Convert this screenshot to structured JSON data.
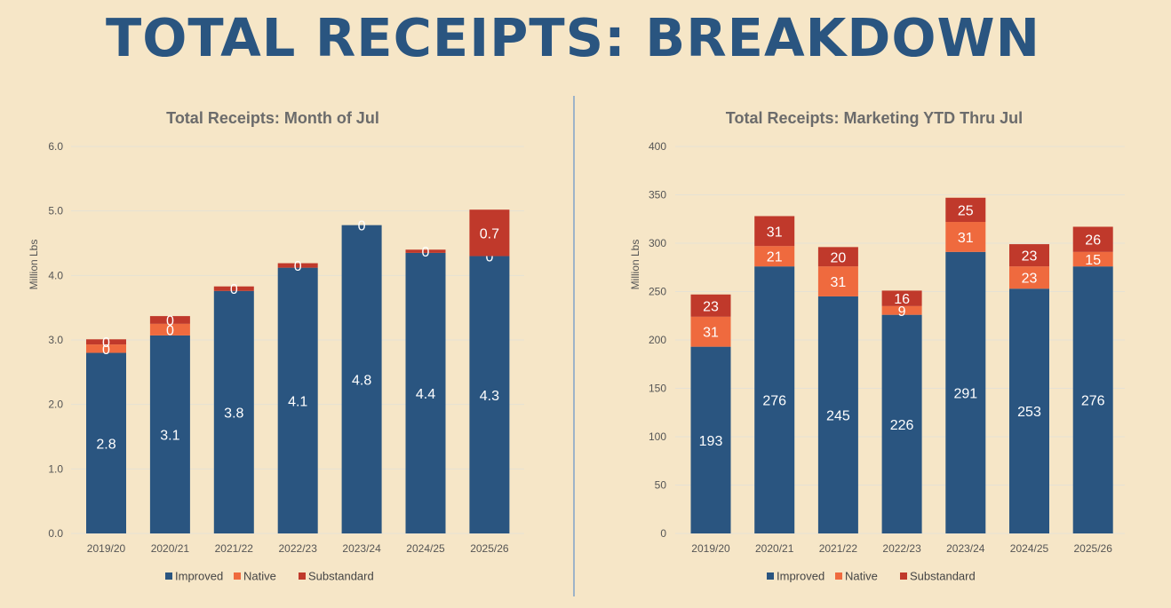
{
  "page_title": "TOTAL RECEIPTS: BREAKDOWN",
  "colors": {
    "background": "#f6e6c7",
    "title": "#2a5580",
    "improved": "#2a5580",
    "native": "#ef6a3e",
    "substandard": "#c0392b",
    "grid": "#e6e1d4"
  },
  "chart_data": [
    {
      "type": "bar",
      "stacked": true,
      "title": "Total Receipts: Month of Jul",
      "xlabel": "",
      "ylabel": "Million Lbs",
      "ylim": [
        0,
        6
      ],
      "yticks": [
        "0.0",
        "1.0",
        "2.0",
        "3.0",
        "4.0",
        "5.0",
        "6.0"
      ],
      "grid": true,
      "legend_position": "bottom",
      "categories": [
        "2019/20",
        "2020/21",
        "2021/22",
        "2022/23",
        "2023/24",
        "2024/25",
        "2025/26"
      ],
      "series": [
        {
          "name": "Improved",
          "values": [
            2.8,
            3.07,
            3.76,
            4.12,
            4.78,
            4.35,
            4.3
          ],
          "labels": [
            "2.8",
            "3.1",
            "3.8",
            "4.1",
            "4.8",
            "4.4",
            "4.3"
          ]
        },
        {
          "name": "Native",
          "values": [
            0.13,
            0.18,
            0.0,
            0.0,
            0.0,
            0.0,
            0.0
          ],
          "labels": [
            "0",
            "0",
            "",
            "",
            "",
            "",
            "0"
          ]
        },
        {
          "name": "Substandard",
          "values": [
            0.08,
            0.12,
            0.07,
            0.07,
            0.0,
            0.05,
            0.72
          ],
          "labels": [
            "0",
            "0",
            "0",
            "0",
            "0",
            "0",
            "0.7"
          ]
        }
      ]
    },
    {
      "type": "bar",
      "stacked": true,
      "title": "Total Receipts: Marketing YTD Thru Jul",
      "xlabel": "",
      "ylabel": "Million Lbs",
      "ylim": [
        0,
        400
      ],
      "yticks": [
        "0",
        "50",
        "100",
        "150",
        "200",
        "250",
        "300",
        "350",
        "400"
      ],
      "grid": true,
      "legend_position": "bottom",
      "categories": [
        "2019/20",
        "2020/21",
        "2021/22",
        "2022/23",
        "2023/24",
        "2024/25",
        "2025/26"
      ],
      "series": [
        {
          "name": "Improved",
          "values": [
            193,
            276,
            245,
            226,
            291,
            253,
            276
          ],
          "labels": [
            "193",
            "276",
            "245",
            "226",
            "291",
            "253",
            "276"
          ]
        },
        {
          "name": "Native",
          "values": [
            31,
            21,
            31,
            9,
            31,
            23,
            15
          ],
          "labels": [
            "31",
            "21",
            "31",
            "9",
            "31",
            "23",
            "15"
          ]
        },
        {
          "name": "Substandard",
          "values": [
            23,
            31,
            20,
            16,
            25,
            23,
            26
          ],
          "labels": [
            "23",
            "31",
            "20",
            "16",
            "25",
            "23",
            "26"
          ]
        }
      ]
    }
  ]
}
